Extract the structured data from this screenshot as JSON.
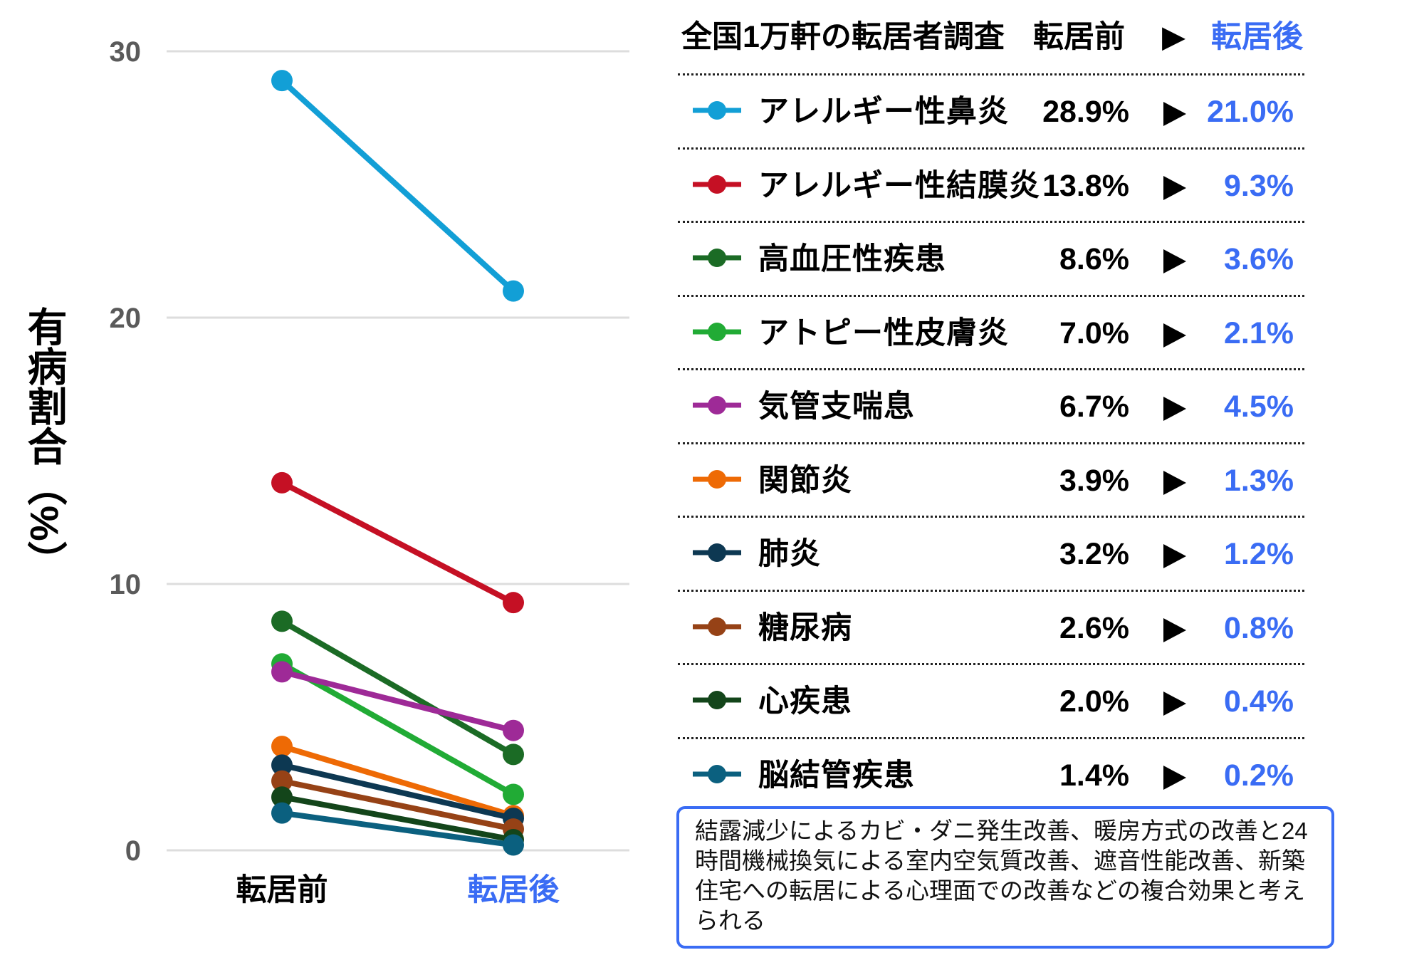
{
  "chart_data": {
    "type": "line",
    "title": "全国1万軒の転居者調査",
    "xlabel": "",
    "ylabel": "有病割合（%）",
    "categories": [
      "転居前",
      "転居後"
    ],
    "ylim": [
      0,
      30
    ],
    "yticks": [
      0,
      10,
      20,
      30
    ],
    "grid": true,
    "legend_position": "right",
    "series": [
      {
        "name": "アレルギー性鼻炎",
        "values": [
          28.9,
          21.0
        ],
        "color": "#129fd6"
      },
      {
        "name": "アレルギー性結膜炎",
        "values": [
          13.8,
          9.3
        ],
        "color": "#c51024"
      },
      {
        "name": "高血圧性疾患",
        "values": [
          8.6,
          3.6
        ],
        "color": "#1b6b25"
      },
      {
        "name": "アトピー性皮膚炎",
        "values": [
          7.0,
          2.1
        ],
        "color": "#21ab35"
      },
      {
        "name": "気管支喘息",
        "values": [
          6.7,
          4.5
        ],
        "color": "#9e2a97"
      },
      {
        "name": "関節炎",
        "values": [
          3.9,
          1.3
        ],
        "color": "#ee6a05"
      },
      {
        "name": "肺炎",
        "values": [
          3.2,
          1.2
        ],
        "color": "#0d3852"
      },
      {
        "name": "糖尿病",
        "values": [
          2.6,
          0.8
        ],
        "color": "#964216"
      },
      {
        "name": "心疾患",
        "values": [
          2.0,
          0.4
        ],
        "color": "#13451a"
      },
      {
        "name": "脳結管疾患",
        "values": [
          1.4,
          0.2
        ],
        "color": "#0b607f"
      }
    ]
  },
  "axis": {
    "y_title": "有病割合（%）",
    "y_ticks": [
      "0",
      "10",
      "20",
      "30"
    ],
    "x_labels": [
      "転居前",
      "転居後"
    ]
  },
  "table": {
    "title": "全国1万軒の転居者調査",
    "before_header": "転居前",
    "arrow": "▶",
    "after_header": "転居後",
    "rows": [
      {
        "label": "アレルギー性鼻炎",
        "before": "28.9%",
        "after": "21.0%"
      },
      {
        "label": "アレルギー性結膜炎",
        "before": "13.8%",
        "after": "9.3%"
      },
      {
        "label": "高血圧性疾患",
        "before": "8.6%",
        "after": "3.6%"
      },
      {
        "label": "アトピー性皮膚炎",
        "before": "7.0%",
        "after": "2.1%"
      },
      {
        "label": "気管支喘息",
        "before": "6.7%",
        "after": "4.5%"
      },
      {
        "label": "関節炎",
        "before": "3.9%",
        "after": "1.3%"
      },
      {
        "label": "肺炎",
        "before": "3.2%",
        "after": "1.2%"
      },
      {
        "label": "糖尿病",
        "before": "2.6%",
        "after": "0.8%"
      },
      {
        "label": "心疾患",
        "before": "2.0%",
        "after": "0.4%"
      },
      {
        "label": "脳結管疾患",
        "before": "1.4%",
        "after": "0.2%"
      }
    ]
  },
  "note": {
    "text": "結露減少によるカビ・ダニ発生改善、暖房方式の改善と24時間機械換気による室内空気質改善、遮音性能改善、新築住宅への転居による心理面での改善などの複合効果と考えられる"
  },
  "colors": {
    "accent_blue": "#3a6cf4",
    "grid": "#dddddd",
    "tick_label": "#5a5a5a"
  }
}
